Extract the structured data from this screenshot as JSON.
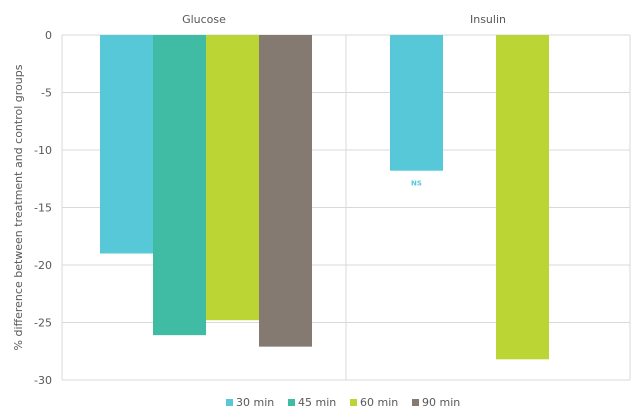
{
  "chart_data": {
    "type": "bar",
    "title": "",
    "xlabel": "",
    "ylabel": "% difference between treatment and control groups",
    "ylim": [
      -30,
      0
    ],
    "yticks": [
      0,
      -5,
      -10,
      -15,
      -20,
      -25,
      -30
    ],
    "categories": [
      "Glucose",
      "Insulin"
    ],
    "grid": true,
    "legend_position": "bottom",
    "series": [
      {
        "name": "30 min",
        "color": "#56c8d8",
        "values": [
          -19.0,
          -11.8
        ]
      },
      {
        "name": "45 min",
        "color": "#40bba4",
        "values": [
          -26.1,
          null
        ]
      },
      {
        "name": "60 min",
        "color": "#bbd534",
        "values": [
          -24.8,
          -28.2
        ]
      },
      {
        "name": "90 min",
        "color": "#847a72",
        "values": [
          -27.1,
          null
        ]
      }
    ],
    "annotations": [
      {
        "text": "NS",
        "series": "30 min",
        "category": "Insulin",
        "color": "#56c8d8"
      }
    ]
  }
}
